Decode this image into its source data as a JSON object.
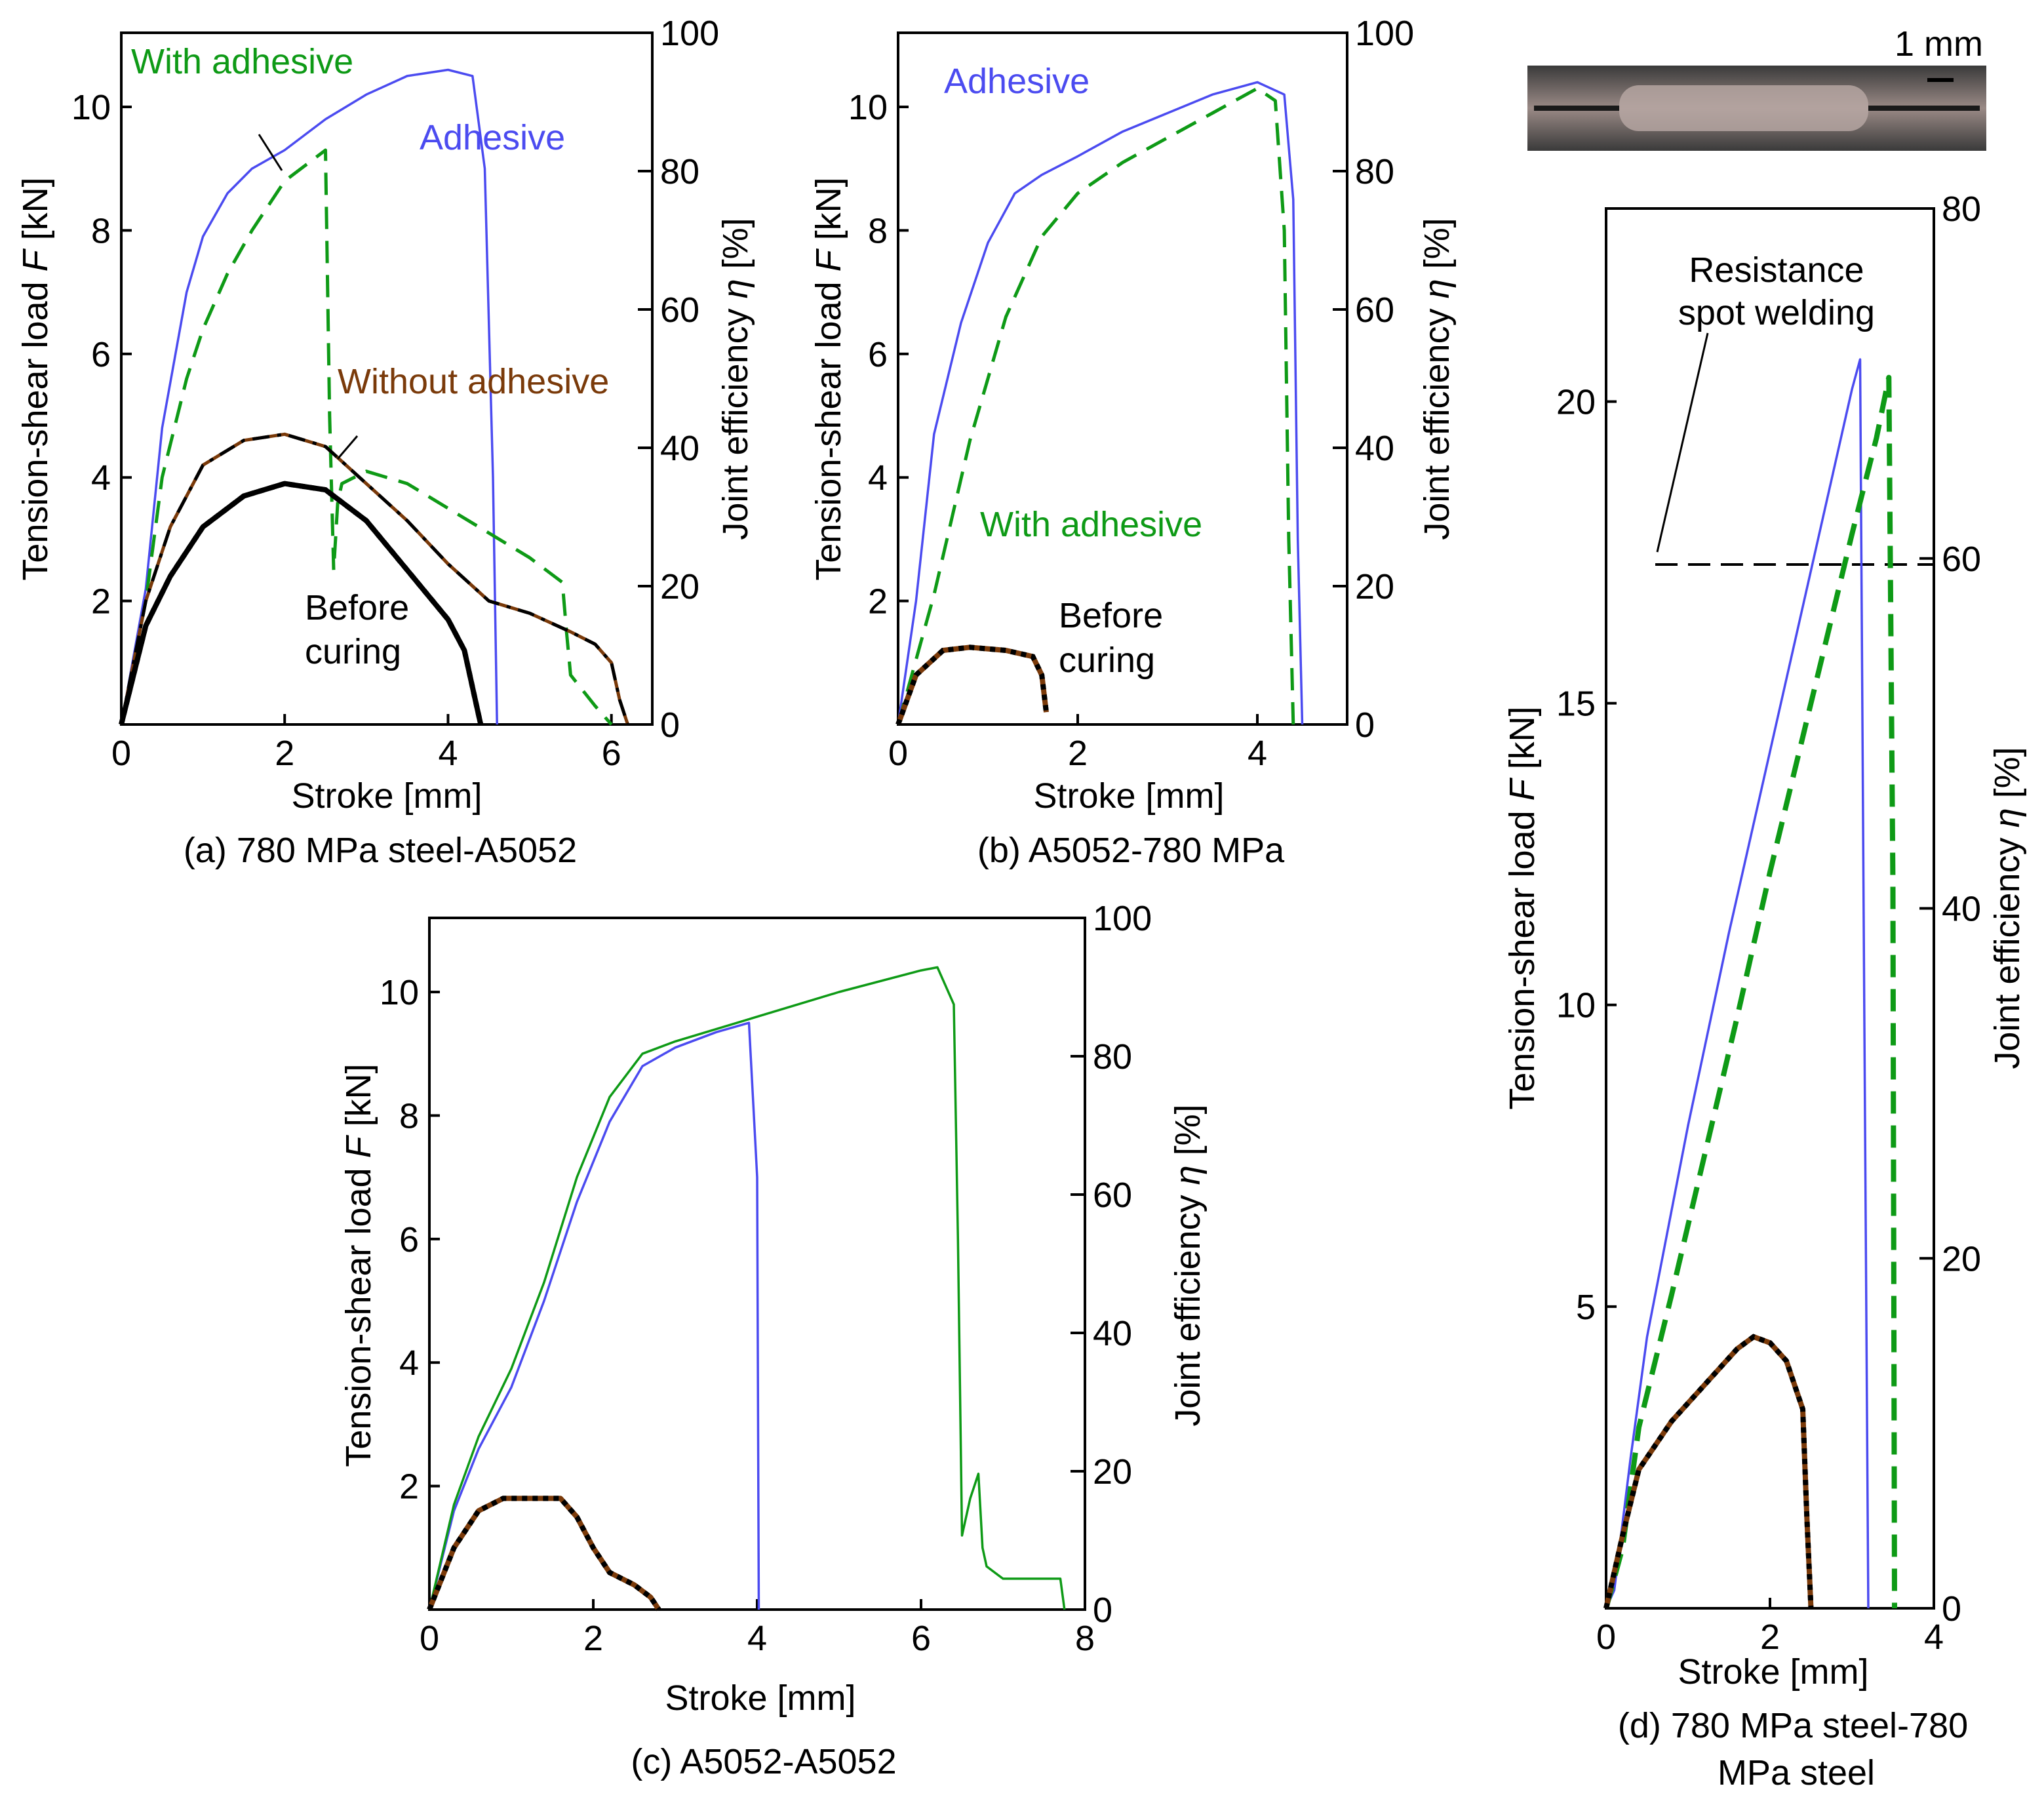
{
  "colors": {
    "adhesive": "#4b4bf0",
    "with_adhesive": "#0e9a16",
    "without_adhesive": "#7a3a0a",
    "before_curing": "#000000",
    "reference": "#000000"
  },
  "photo": {
    "scale_label": "1 mm",
    "description_icon": "weld-cross-section-photo"
  },
  "chart_data": [
    {
      "id": "a",
      "type": "line",
      "caption": "(a) 780 MPa steel-A5052",
      "xlabel": "Stroke [mm]",
      "ylabel": "Tension-shear load F [kN]",
      "ylabel_parts": [
        "Tension-shear load ",
        "F",
        " [kN]"
      ],
      "y2label_parts": [
        "Joint efficiency ",
        "η",
        " [%]"
      ],
      "xlim": [
        0,
        6.5
      ],
      "ylim": [
        0,
        11.2
      ],
      "y2lim": [
        0,
        100
      ],
      "xticks": [
        0,
        2,
        4,
        6
      ],
      "yticks": [
        2,
        4,
        6,
        8,
        10
      ],
      "y2ticks": [
        0,
        20,
        40,
        60,
        80,
        100
      ],
      "annotations": [
        {
          "text": "With adhesive",
          "color": "#0e9a16"
        },
        {
          "text": "Adhesive",
          "color": "#4b4bf0"
        },
        {
          "text": "Without adhesive",
          "color": "#7a3a0a"
        },
        {
          "text": "Before",
          "color": "#000000"
        },
        {
          "text": "curing",
          "color": "#000000"
        }
      ],
      "series": [
        {
          "name": "Adhesive",
          "style": "solid",
          "color": "#4b4bf0",
          "x": [
            0,
            0.3,
            0.5,
            0.8,
            1.0,
            1.3,
            1.6,
            2.0,
            2.5,
            3.0,
            3.5,
            4.0,
            4.3,
            4.45,
            4.55,
            4.6
          ],
          "y": [
            0,
            2.2,
            4.8,
            7.0,
            7.9,
            8.6,
            9.0,
            9.3,
            9.8,
            10.2,
            10.5,
            10.6,
            10.5,
            9.0,
            4.0,
            0
          ]
        },
        {
          "name": "With adhesive",
          "style": "dash",
          "color": "#0e9a16",
          "x": [
            0,
            0.3,
            0.5,
            0.8,
            1.0,
            1.3,
            1.6,
            2.0,
            2.3,
            2.5,
            2.55,
            2.6,
            2.65,
            2.7,
            3.0,
            3.5,
            4.0,
            4.5,
            5.0,
            5.4,
            5.45,
            5.5,
            5.8,
            6.0
          ],
          "y": [
            0,
            2.0,
            4.0,
            5.6,
            6.4,
            7.3,
            8.0,
            8.8,
            9.1,
            9.3,
            5.0,
            2.5,
            3.6,
            3.9,
            4.1,
            3.9,
            3.5,
            3.1,
            2.7,
            2.3,
            1.5,
            0.8,
            0.3,
            0
          ]
        },
        {
          "name": "Without adhesive",
          "style": "dashdot",
          "color": "#7a3a0a",
          "x": [
            0,
            0.3,
            0.6,
            1.0,
            1.5,
            2.0,
            2.5,
            3.0,
            3.5,
            4.0,
            4.5,
            5.0,
            5.5,
            5.8,
            6.0,
            6.1,
            6.2
          ],
          "y": [
            0,
            2.0,
            3.2,
            4.2,
            4.6,
            4.7,
            4.5,
            3.9,
            3.3,
            2.6,
            2.0,
            1.8,
            1.5,
            1.3,
            1.0,
            0.4,
            0
          ]
        },
        {
          "name": "Before curing",
          "style": "dot",
          "color": "#000000",
          "x": [
            0,
            0.3,
            0.6,
            1.0,
            1.5,
            2.0,
            2.5,
            3.0,
            3.5,
            4.0,
            4.2,
            4.3,
            4.4
          ],
          "y": [
            0,
            1.6,
            2.4,
            3.2,
            3.7,
            3.9,
            3.8,
            3.3,
            2.5,
            1.7,
            1.2,
            0.6,
            0
          ]
        }
      ]
    },
    {
      "id": "b",
      "type": "line",
      "caption": "(b)  A5052-780 MPa",
      "xlabel": "Stroke [mm]",
      "ylabel": "Tension-shear load F [kN]",
      "ylabel_parts": [
        "Tension-shear load ",
        "F",
        " [kN]"
      ],
      "y2label_parts": [
        "Joint efficiency ",
        "η",
        " [%]"
      ],
      "xlim": [
        0,
        5.0
      ],
      "ylim": [
        0,
        11.2
      ],
      "y2lim": [
        0,
        100
      ],
      "xticks": [
        0,
        2,
        4
      ],
      "yticks": [
        2,
        4,
        6,
        8,
        10
      ],
      "y2ticks": [
        0,
        20,
        40,
        60,
        80,
        100
      ],
      "annotations": [
        {
          "text": "Adhesive",
          "color": "#4b4bf0"
        },
        {
          "text": "With adhesive",
          "color": "#0e9a16"
        },
        {
          "text": "Before",
          "color": "#000000"
        },
        {
          "text": "curing",
          "color": "#000000"
        }
      ],
      "series": [
        {
          "name": "Adhesive",
          "style": "solid",
          "color": "#4b4bf0",
          "x": [
            0,
            0.2,
            0.4,
            0.7,
            1.0,
            1.3,
            1.6,
            2.0,
            2.5,
            3.0,
            3.5,
            4.0,
            4.3,
            4.4,
            4.45,
            4.5
          ],
          "y": [
            0,
            2.0,
            4.7,
            6.5,
            7.8,
            8.6,
            8.9,
            9.2,
            9.6,
            9.9,
            10.2,
            10.4,
            10.2,
            8.5,
            3.0,
            0
          ]
        },
        {
          "name": "With adhesive",
          "style": "dash",
          "color": "#0e9a16",
          "x": [
            0,
            0.4,
            0.8,
            1.2,
            1.6,
            2.0,
            2.5,
            3.0,
            3.5,
            4.0,
            4.2,
            4.3,
            4.35,
            4.4
          ],
          "y": [
            0,
            2.1,
            4.6,
            6.6,
            7.9,
            8.6,
            9.1,
            9.5,
            9.9,
            10.3,
            10.1,
            8.0,
            3.0,
            0
          ]
        },
        {
          "name": "Before curing",
          "style": "dot",
          "color": "#7a3a0a",
          "x": [
            0,
            0.2,
            0.5,
            0.8,
            1.2,
            1.5,
            1.6,
            1.65
          ],
          "y": [
            0,
            0.8,
            1.2,
            1.25,
            1.2,
            1.1,
            0.8,
            0.2
          ]
        }
      ]
    },
    {
      "id": "c",
      "type": "line",
      "caption": "(c) A5052-A5052",
      "xlabel": "Stroke [mm]",
      "ylabel": "Tension-shear load F [kN]",
      "ylabel_parts": [
        "Tension-shear load ",
        "F",
        " [kN]"
      ],
      "y2label_parts": [
        "Joint efficiency ",
        "η",
        " [%]"
      ],
      "xlim": [
        0,
        8.0
      ],
      "ylim": [
        0,
        11.2
      ],
      "y2lim": [
        0,
        100
      ],
      "xticks": [
        0,
        2,
        4,
        6,
        8
      ],
      "yticks": [
        2,
        4,
        6,
        8,
        10
      ],
      "y2ticks": [
        0,
        20,
        40,
        60,
        80,
        100
      ],
      "annotations": [],
      "series": [
        {
          "name": "Blue",
          "style": "solid",
          "color": "#4b4bf0",
          "x": [
            0,
            0.3,
            0.6,
            1.0,
            1.4,
            1.8,
            2.2,
            2.6,
            3.0,
            3.5,
            3.9,
            4.0,
            4.02
          ],
          "y": [
            0,
            1.6,
            2.6,
            3.6,
            5.0,
            6.6,
            7.9,
            8.8,
            9.1,
            9.35,
            9.5,
            7.0,
            0
          ]
        },
        {
          "name": "Green",
          "style": "solid",
          "color": "#0e9a16",
          "x": [
            0,
            0.3,
            0.6,
            1.0,
            1.4,
            1.8,
            2.2,
            2.6,
            3.0,
            4.0,
            5.0,
            6.0,
            6.2,
            6.4,
            6.45,
            6.5,
            6.6,
            6.65,
            6.7,
            6.75,
            6.8,
            7.0,
            7.7,
            7.75
          ],
          "y": [
            0,
            1.7,
            2.8,
            3.9,
            5.3,
            7.0,
            8.3,
            9.0,
            9.2,
            9.6,
            10.0,
            10.35,
            10.4,
            9.8,
            6.0,
            1.2,
            1.8,
            2.0,
            2.2,
            1.0,
            0.7,
            0.5,
            0.5,
            0
          ]
        },
        {
          "name": "Before curing",
          "style": "dot",
          "color": "#7a3a0a",
          "x": [
            0,
            0.3,
            0.6,
            0.9,
            1.2,
            1.6,
            1.8,
            2.0,
            2.2,
            2.5,
            2.7,
            2.8
          ],
          "y": [
            0,
            1.0,
            1.6,
            1.8,
            1.8,
            1.8,
            1.5,
            1.0,
            0.6,
            0.4,
            0.2,
            0
          ]
        }
      ]
    },
    {
      "id": "d",
      "type": "line",
      "caption_lines": [
        "(d) 780 MPa steel-780",
        "MPa steel"
      ],
      "xlabel": "Stroke [mm]",
      "ylabel": "Tension-shear load F [kN]",
      "ylabel_parts": [
        "Tension-shear load ",
        "F",
        " [kN]"
      ],
      "y2label_parts": [
        "Joint efficiency ",
        "η",
        " [%]"
      ],
      "xlim": [
        0,
        4.0
      ],
      "ylim": [
        0,
        23.2
      ],
      "y2lim": [
        0,
        80
      ],
      "xticks": [
        0,
        2,
        4
      ],
      "yticks": [
        5,
        10,
        15,
        20
      ],
      "y2ticks": [
        0,
        20,
        40,
        60,
        80
      ],
      "reference_line": {
        "label_lines": [
          "Resistance",
          "spot welding"
        ],
        "y": 17.3
      },
      "annotations": [],
      "series": [
        {
          "name": "Blue",
          "style": "solid",
          "color": "#4b4bf0",
          "x": [
            0,
            0.1,
            0.3,
            0.5,
            1.0,
            1.5,
            2.0,
            2.5,
            3.0,
            3.1,
            3.15,
            3.2
          ],
          "y": [
            0,
            0.3,
            2.5,
            4.5,
            8.0,
            11.2,
            14.2,
            17.2,
            20.2,
            20.7,
            10.0,
            0
          ]
        },
        {
          "name": "Green",
          "style": "dash",
          "color": "#0e9a16",
          "x": [
            0,
            0.2,
            0.4,
            0.8,
            1.2,
            1.6,
            2.0,
            2.5,
            3.0,
            3.3,
            3.45,
            3.5,
            3.52
          ],
          "y": [
            0,
            1.0,
            3.0,
            5.2,
            7.5,
            9.8,
            12.2,
            15.0,
            17.8,
            19.4,
            20.4,
            12.0,
            0
          ]
        },
        {
          "name": "Before curing",
          "style": "dot",
          "color": "#7a3a0a",
          "x": [
            0,
            0.2,
            0.4,
            0.8,
            1.2,
            1.6,
            1.8,
            2.0,
            2.2,
            2.4,
            2.45,
            2.5
          ],
          "y": [
            0,
            1.2,
            2.3,
            3.1,
            3.7,
            4.3,
            4.5,
            4.4,
            4.1,
            3.3,
            1.5,
            0
          ]
        }
      ]
    }
  ]
}
